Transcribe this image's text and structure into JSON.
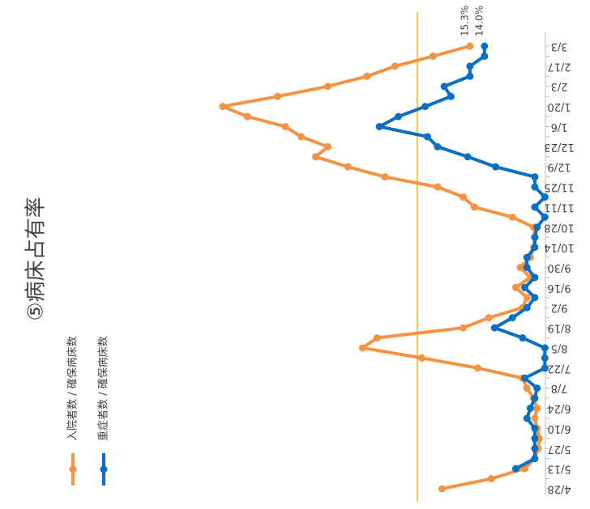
{
  "chart_data": {
    "type": "line",
    "title": "⑤病床占有率",
    "categories": [
      "4/28",
      null,
      "5/13",
      null,
      "5/27",
      null,
      "6/10",
      null,
      "6/24",
      null,
      "7/8",
      null,
      "7/22",
      null,
      "8/5",
      null,
      "8/19",
      null,
      "9/2",
      null,
      "9/16",
      null,
      "9/30",
      null,
      "10/14",
      null,
      "10/28",
      null,
      "11/11",
      null,
      "11/25",
      null,
      "12/9",
      null,
      "12/23",
      null,
      "1/6",
      null,
      "1/20",
      null,
      "2/3",
      null,
      "2/17",
      null,
      "3/3"
    ],
    "series": [
      {
        "name": "入院者数 / 確保病床数",
        "color": "#f39444",
        "values": [
          17.8,
          13.4,
          10.4,
          9.5,
          9.2,
          9.1,
          9.3,
          9.5,
          9.3,
          9.6,
          10.2,
          10.6,
          14.6,
          19.6,
          24.9,
          23.6,
          15.9,
          13.6,
          10.6,
          10.2,
          11.2,
          9.9,
          10.8,
          9.9,
          9.6,
          9.5,
          9.6,
          11.5,
          14.9,
          15.9,
          18.2,
          22.9,
          26.2,
          29.1,
          28.0,
          30.4,
          31.8,
          35.2,
          37.4,
          32.5,
          28.0,
          24.5,
          22.0,
          18.6,
          15.3
        ],
        "value_labels": [
          null,
          null,
          null,
          null,
          null,
          null,
          null,
          null,
          null,
          null,
          null,
          null,
          null,
          null,
          null,
          null,
          null,
          null,
          null,
          null,
          null,
          null,
          null,
          null,
          null,
          null,
          null,
          null,
          null,
          null,
          null,
          null,
          null,
          null,
          null,
          null,
          null,
          null,
          null,
          null,
          null,
          null,
          null,
          null,
          "15.3%"
        ]
      },
      {
        "name": "重症者数 / 確保病床数",
        "color": "#0a6fc2",
        "values": [
          null,
          null,
          11.2,
          9.5,
          9.5,
          9.5,
          9.5,
          10.2,
          9.9,
          9.5,
          9.3,
          10.4,
          8.6,
          8.6,
          8.6,
          10.6,
          13.1,
          11.5,
          10.2,
          9.5,
          10.4,
          9.5,
          10.2,
          10.2,
          9.5,
          9.5,
          9.3,
          8.6,
          9.5,
          8.6,
          9.5,
          9.5,
          13.0,
          15.5,
          18.2,
          19.1,
          23.4,
          21.7,
          19.3,
          17.0,
          17.6,
          15.3,
          15.3,
          14.0,
          14.0
        ],
        "value_labels": [
          null,
          null,
          null,
          null,
          null,
          null,
          null,
          null,
          null,
          null,
          null,
          null,
          null,
          null,
          null,
          null,
          null,
          null,
          null,
          null,
          null,
          null,
          null,
          null,
          null,
          null,
          null,
          null,
          null,
          null,
          null,
          null,
          null,
          null,
          null,
          null,
          null,
          null,
          null,
          null,
          null,
          null,
          null,
          null,
          "14.0%"
        ]
      }
    ],
    "threshold": 20,
    "threshold_color": "#f5b400",
    "ylim": [
      0,
      40
    ]
  }
}
